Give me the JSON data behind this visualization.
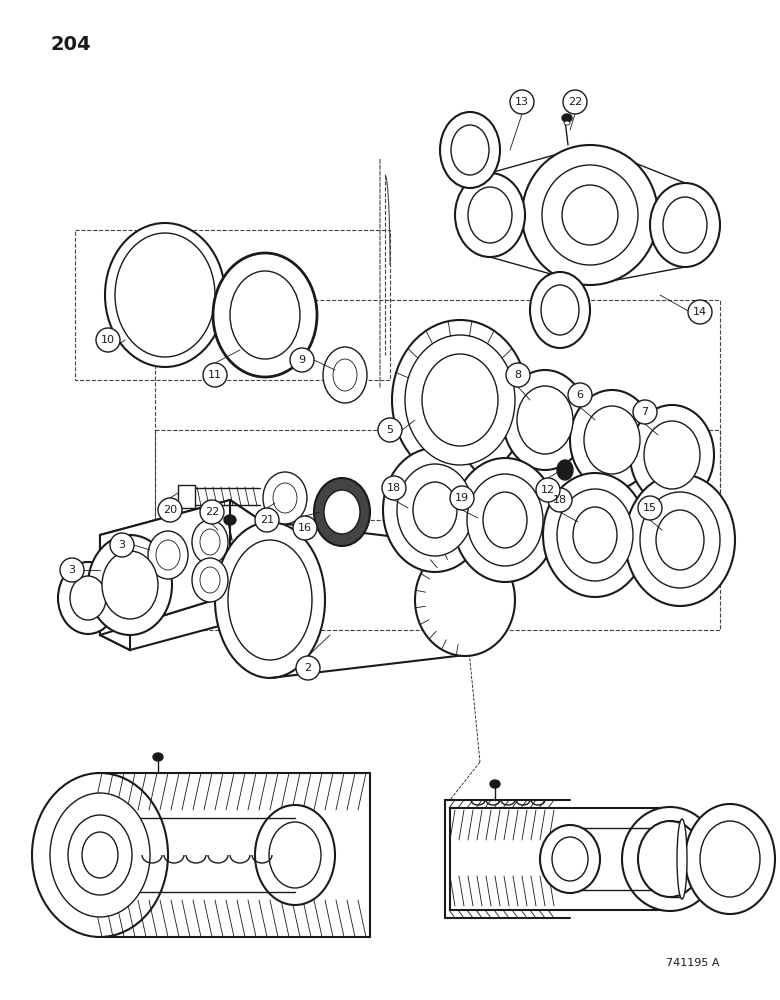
{
  "page_number": "204",
  "part_label": "741195 A",
  "background_color": "#ffffff",
  "line_color": "#1a1a1a",
  "fig_width": 7.8,
  "fig_height": 10.0,
  "dpi": 100,
  "lw_thin": 0.6,
  "lw_med": 1.0,
  "lw_thick": 1.5,
  "lw_heavy": 2.0
}
